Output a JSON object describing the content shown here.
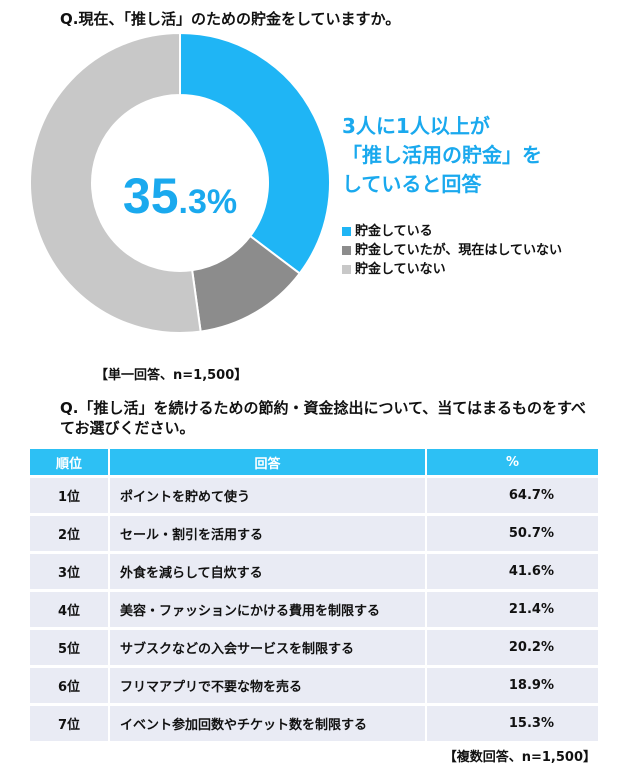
{
  "q1": {
    "title": "Q.現在、「推し活」のための貯金をしていますか。",
    "center_main": "35",
    "center_decimal": ".3%",
    "callout_lines": [
      "3人に1人以上が",
      "「推し活用の貯金」を",
      "していると回答"
    ],
    "note": "【単一回答、n=1,500】"
  },
  "q2": {
    "title": "Q.「推し活」を続けるための節約・資金捻出について、当てはまるものをすべてお選びください。",
    "headers": [
      "順位",
      "回答",
      "%"
    ],
    "rows": [
      {
        "rank": "1位",
        "answer": "ポイントを貯めて使う",
        "pct": "64.7%"
      },
      {
        "rank": "2位",
        "answer": "セール・割引を活用する",
        "pct": "50.7%"
      },
      {
        "rank": "3位",
        "answer": "外食を減らして自炊する",
        "pct": "41.6%"
      },
      {
        "rank": "4位",
        "answer": "美容・ファッションにかける費用を制限する",
        "pct": "21.4%"
      },
      {
        "rank": "5位",
        "answer": "サブスクなどの入会サービスを制限する",
        "pct": "20.2%"
      },
      {
        "rank": "6位",
        "answer": "フリマアプリで不要な物を売る",
        "pct": "18.9%"
      },
      {
        "rank": "7位",
        "answer": "イベント参加回数やチケット数を制限する",
        "pct": "15.3%"
      }
    ],
    "note": "【複数回答、n=1,500】"
  },
  "chart_data": [
    {
      "type": "pie",
      "style": "donut",
      "categories": [
        "貯金している",
        "貯金していたが、現在はしていない",
        "貯金していない"
      ],
      "values": [
        35.3,
        12.5,
        52.2
      ],
      "colors": [
        "#1fb5f5",
        "#8c8c8c",
        "#c8c8c8"
      ],
      "legend": "right"
    },
    {
      "type": "table",
      "columns": [
        "順位",
        "回答",
        "%"
      ],
      "values": [
        64.7,
        50.7,
        41.6,
        21.4,
        20.2,
        18.9,
        15.3
      ]
    }
  ]
}
